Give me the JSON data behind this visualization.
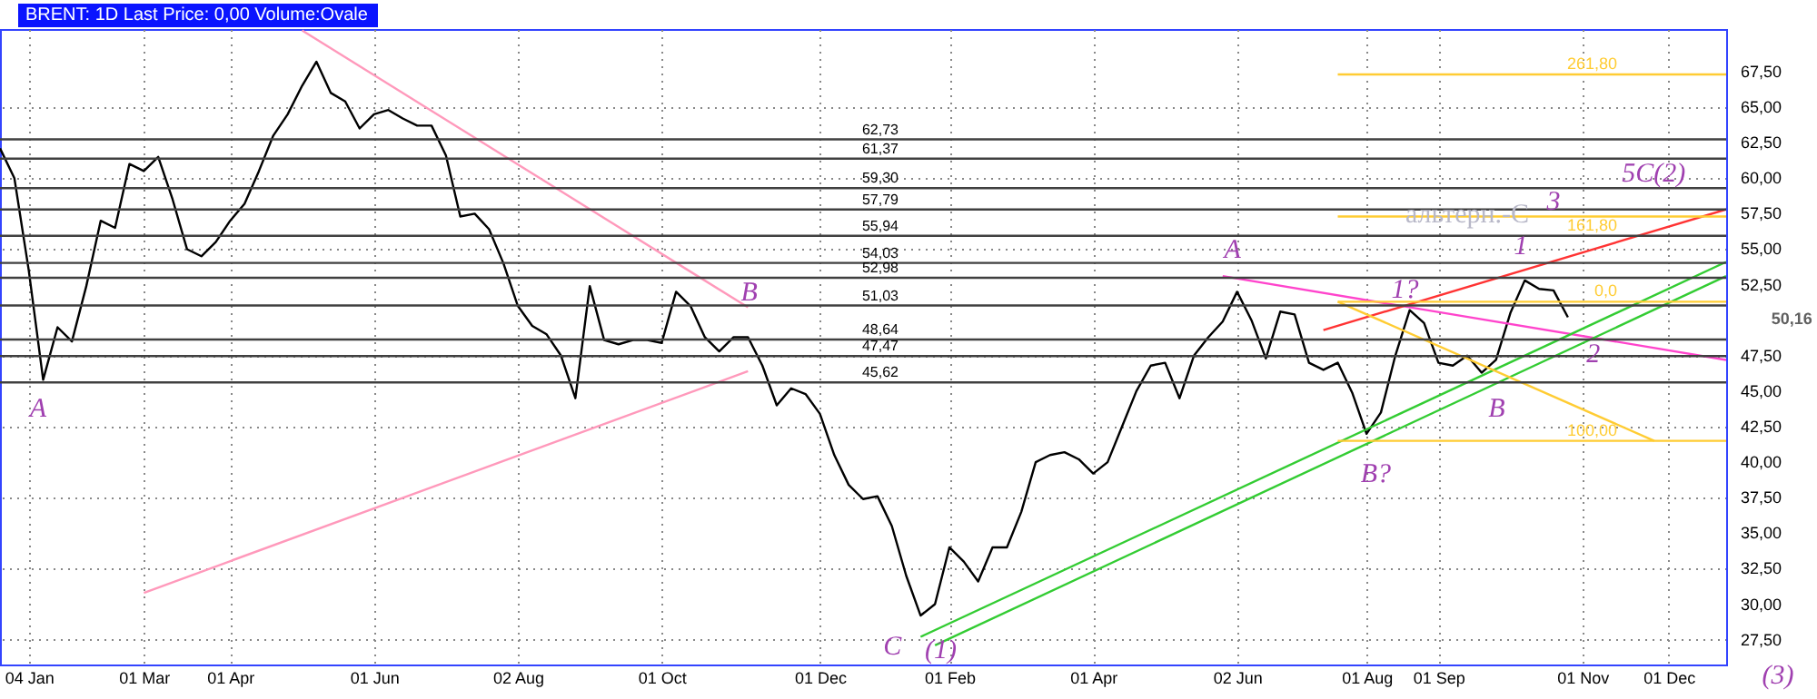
{
  "chart_data": {
    "type": "line",
    "title": "BRENT: 1D Last Price: 0,00 Volume:Ovale",
    "categories": [
      null,
      null,
      "04 Jan",
      null,
      null,
      null,
      null,
      null,
      null,
      null,
      "01 Mar",
      null,
      null,
      null,
      null,
      null,
      "01 Apr",
      null,
      null,
      null,
      null,
      null,
      null,
      null,
      null,
      null,
      "01 Jun",
      null,
      null,
      null,
      null,
      null,
      null,
      null,
      null,
      null,
      "02 Aug",
      null,
      null,
      null,
      null,
      null,
      null,
      null,
      null,
      null,
      "01 Oct",
      null,
      null,
      null,
      null,
      null,
      null,
      null,
      null,
      null,
      null,
      "01 Dec",
      null,
      null,
      null,
      null,
      null,
      null,
      null,
      null,
      "01 Feb",
      null,
      null,
      null,
      null,
      null,
      null,
      null,
      null,
      null,
      "01 Apr",
      null,
      null,
      null,
      null,
      null,
      null,
      null,
      null,
      null,
      "02 Jun",
      null,
      null,
      null,
      null,
      null,
      null,
      null,
      null,
      "01 Aug",
      null,
      null,
      null,
      null,
      "01 Sep",
      null,
      null,
      null,
      null,
      null,
      null,
      null,
      null,
      null,
      "01 Nov",
      null,
      null,
      null,
      null,
      null,
      "01 Dec",
      null,
      null,
      null,
      null
    ],
    "ylim": [
      25.75,
      70.5
    ],
    "yticks": [
      {
        "value": 27.5,
        "label": "27,50"
      },
      {
        "value": 30,
        "label": "30,00"
      },
      {
        "value": 32.5,
        "label": "32,50"
      },
      {
        "value": 35,
        "label": "35,00"
      },
      {
        "value": 37.5,
        "label": "37,50"
      },
      {
        "value": 40,
        "label": "40,00"
      },
      {
        "value": 42.5,
        "label": "42,50"
      },
      {
        "value": 45,
        "label": "45,00"
      },
      {
        "value": 47.5,
        "label": "47,50"
      },
      {
        "value": 52.5,
        "label": "52,50"
      },
      {
        "value": 55,
        "label": "55,00"
      },
      {
        "value": 57.5,
        "label": "57,50"
      },
      {
        "value": 60,
        "label": "60,00"
      },
      {
        "value": 62.5,
        "label": "62,50"
      },
      {
        "value": 65,
        "label": "65,00"
      },
      {
        "value": 67.5,
        "label": "67,50"
      }
    ],
    "grid": true,
    "series": [
      {
        "color": "#000000",
        "values": [
          62.1,
          60.0,
          53.5,
          45.8,
          49.5,
          48.5,
          52.4,
          57.0,
          56.5,
          61.0,
          60.5,
          61.5,
          58.5,
          55.0,
          54.5,
          55.5,
          57.0,
          58.2,
          60.5,
          63.0,
          64.5,
          66.5,
          68.2,
          66.0,
          65.4,
          63.5,
          64.5,
          64.8,
          64.2,
          63.7,
          63.7,
          61.6,
          57.3,
          57.5,
          56.4,
          54.0,
          51.0,
          49.6,
          49.0,
          47.5,
          44.5,
          52.4,
          48.6,
          48.3,
          48.6,
          48.6,
          48.4,
          52.0,
          51.0,
          48.8,
          47.8,
          48.8,
          48.8,
          46.8,
          44.0,
          45.2,
          44.8,
          43.4,
          40.5,
          38.4,
          37.4,
          37.6,
          35.5,
          32.0,
          29.2,
          30.0,
          34.0,
          33.0,
          31.6,
          34.0,
          34.0,
          36.5,
          40.0,
          40.5,
          40.7,
          40.2,
          39.2,
          40.0,
          42.5,
          45.0,
          46.8,
          47.0,
          44.5,
          47.5,
          48.8,
          49.9,
          52.0,
          50.0,
          47.3,
          50.6,
          50.4,
          47.0,
          46.5,
          47.0,
          44.9,
          42.0,
          43.5,
          47.5,
          50.7,
          49.8,
          47.0,
          46.8,
          47.5,
          46.3,
          47.2,
          50.5,
          52.8,
          52.2,
          52.1,
          50.2,
          null,
          null,
          null,
          null,
          null,
          null,
          null,
          null,
          null,
          null,
          null
        ]
      },
      {
        "color": "#ff99bb",
        "values": [
          null,
          null,
          null,
          null,
          null,
          null,
          null,
          null,
          null,
          null,
          null,
          null,
          null,
          null,
          null,
          null,
          null,
          null,
          null,
          null,
          null,
          70.4,
          null,
          null,
          null,
          null,
          null,
          null,
          null,
          null,
          null,
          null,
          null,
          null,
          null,
          null,
          null,
          null,
          null,
          null,
          null,
          null,
          null,
          null,
          null,
          null,
          null,
          null,
          null,
          null,
          null,
          null,
          50.9,
          null,
          null,
          null,
          null,
          null,
          null,
          null,
          null,
          null,
          null,
          null,
          null,
          null,
          null,
          null,
          null,
          null,
          null,
          null,
          null,
          null,
          null,
          null,
          null,
          null,
          null,
          null,
          null,
          null,
          null,
          null,
          null,
          null,
          null,
          null,
          null,
          null,
          null,
          null,
          null,
          null,
          null,
          null,
          null,
          null,
          null,
          null,
          null,
          null,
          null,
          null,
          null,
          null,
          null,
          null,
          null,
          null,
          null,
          null,
          null,
          null,
          null,
          null,
          null,
          null,
          null,
          null,
          null
        ]
      },
      {
        "color": "#ff99bb",
        "values": [
          null,
          null,
          null,
          null,
          null,
          null,
          null,
          null,
          null,
          null,
          30.8,
          null,
          null,
          null,
          null,
          null,
          null,
          null,
          null,
          null,
          null,
          null,
          null,
          null,
          null,
          null,
          null,
          null,
          null,
          null,
          null,
          null,
          null,
          null,
          null,
          null,
          null,
          null,
          null,
          null,
          null,
          null,
          null,
          null,
          null,
          null,
          null,
          null,
          null,
          null,
          null,
          null,
          46.4,
          null,
          null,
          null,
          null,
          null,
          null,
          null,
          null,
          null,
          null,
          null,
          null,
          null,
          null,
          null,
          null,
          null,
          null,
          null,
          null,
          null,
          null,
          null,
          null,
          null,
          null,
          null,
          null,
          null,
          null,
          null,
          null,
          null,
          null,
          null,
          null,
          null,
          null,
          null,
          null,
          null,
          null,
          null,
          null,
          null,
          null,
          null,
          null,
          null,
          null,
          null,
          null,
          null,
          null,
          null,
          null,
          null,
          null,
          null,
          null,
          null,
          null,
          null,
          null,
          null,
          null,
          null,
          null
        ]
      },
      {
        "color": "#ff44cc",
        "values": [
          null,
          null,
          null,
          null,
          null,
          null,
          null,
          null,
          null,
          null,
          null,
          null,
          null,
          null,
          null,
          null,
          null,
          null,
          null,
          null,
          null,
          null,
          null,
          null,
          null,
          null,
          null,
          null,
          null,
          null,
          null,
          null,
          null,
          null,
          null,
          null,
          null,
          null,
          null,
          null,
          null,
          null,
          null,
          null,
          null,
          null,
          null,
          null,
          null,
          null,
          null,
          null,
          null,
          null,
          null,
          null,
          null,
          null,
          null,
          null,
          null,
          null,
          null,
          null,
          null,
          null,
          null,
          null,
          null,
          null,
          null,
          null,
          null,
          null,
          null,
          null,
          null,
          null,
          null,
          null,
          null,
          null,
          null,
          null,
          null,
          53.1,
          null,
          null,
          null,
          null,
          null,
          null,
          null,
          null,
          null,
          null,
          null,
          null,
          null,
          null,
          null,
          null,
          null,
          null,
          null,
          null,
          null,
          null,
          null,
          null,
          null,
          null,
          null,
          null,
          null,
          null,
          null,
          null,
          null,
          null,
          47.2
        ]
      },
      {
        "color": "#ff3333",
        "values": [
          null,
          null,
          null,
          null,
          null,
          null,
          null,
          null,
          null,
          null,
          null,
          null,
          null,
          null,
          null,
          null,
          null,
          null,
          null,
          null,
          null,
          null,
          null,
          null,
          null,
          null,
          null,
          null,
          null,
          null,
          null,
          null,
          null,
          null,
          null,
          null,
          null,
          null,
          null,
          null,
          null,
          null,
          null,
          null,
          null,
          null,
          null,
          null,
          null,
          null,
          null,
          null,
          null,
          null,
          null,
          null,
          null,
          null,
          null,
          null,
          null,
          null,
          null,
          null,
          null,
          null,
          null,
          null,
          null,
          null,
          null,
          null,
          null,
          null,
          null,
          null,
          null,
          null,
          null,
          null,
          null,
          null,
          null,
          null,
          null,
          null,
          null,
          null,
          null,
          null,
          null,
          null,
          49.3,
          null,
          null,
          null,
          null,
          null,
          null,
          null,
          null,
          null,
          null,
          null,
          null,
          null,
          null,
          null,
          null,
          null,
          null,
          null,
          null,
          null,
          null,
          null,
          null,
          null,
          null,
          null,
          57.8
        ]
      },
      {
        "color": "#33cc33",
        "values": [
          null,
          null,
          null,
          null,
          null,
          null,
          null,
          null,
          null,
          null,
          null,
          null,
          null,
          null,
          null,
          null,
          null,
          null,
          null,
          null,
          null,
          null,
          null,
          null,
          null,
          null,
          null,
          null,
          null,
          null,
          null,
          null,
          null,
          null,
          null,
          null,
          null,
          null,
          null,
          null,
          null,
          null,
          null,
          null,
          null,
          null,
          null,
          null,
          null,
          null,
          null,
          null,
          null,
          null,
          null,
          null,
          null,
          null,
          null,
          null,
          null,
          null,
          null,
          null,
          27.7,
          null,
          null,
          null,
          null,
          null,
          null,
          null,
          null,
          null,
          null,
          null,
          null,
          null,
          null,
          null,
          null,
          null,
          null,
          null,
          null,
          null,
          null,
          null,
          null,
          null,
          null,
          null,
          null,
          null,
          null,
          null,
          null,
          null,
          null,
          null,
          null,
          null,
          null,
          null,
          null,
          null,
          null,
          null,
          null,
          null,
          null,
          null,
          null,
          null,
          null,
          null,
          null,
          null,
          null,
          null,
          54.1
        ]
      },
      {
        "color": "#33cc33",
        "values": [
          null,
          null,
          null,
          null,
          null,
          null,
          null,
          null,
          null,
          null,
          null,
          null,
          null,
          null,
          null,
          null,
          null,
          null,
          null,
          null,
          null,
          null,
          null,
          null,
          null,
          null,
          null,
          null,
          null,
          null,
          null,
          null,
          null,
          null,
          null,
          null,
          null,
          null,
          null,
          null,
          null,
          null,
          null,
          null,
          null,
          null,
          null,
          null,
          null,
          null,
          null,
          null,
          null,
          null,
          null,
          null,
          null,
          null,
          null,
          null,
          null,
          null,
          null,
          null,
          null,
          27.1,
          null,
          null,
          null,
          null,
          null,
          null,
          null,
          null,
          null,
          null,
          null,
          null,
          null,
          null,
          null,
          null,
          null,
          null,
          null,
          null,
          null,
          null,
          null,
          null,
          null,
          null,
          null,
          null,
          null,
          null,
          null,
          null,
          null,
          null,
          null,
          null,
          null,
          null,
          null,
          null,
          null,
          null,
          null,
          null,
          null,
          null,
          null,
          null,
          null,
          null,
          null,
          null,
          null,
          null,
          53.1
        ]
      },
      {
        "color": "#ffcc33",
        "values": [
          null,
          null,
          null,
          null,
          null,
          null,
          null,
          null,
          null,
          null,
          null,
          null,
          null,
          null,
          null,
          null,
          null,
          null,
          null,
          null,
          null,
          null,
          null,
          null,
          null,
          null,
          null,
          null,
          null,
          null,
          null,
          null,
          null,
          null,
          null,
          null,
          null,
          null,
          null,
          null,
          null,
          null,
          null,
          null,
          null,
          null,
          null,
          null,
          null,
          null,
          null,
          null,
          null,
          null,
          null,
          null,
          null,
          null,
          null,
          null,
          null,
          null,
          null,
          null,
          null,
          null,
          null,
          null,
          null,
          null,
          null,
          null,
          null,
          null,
          null,
          null,
          null,
          null,
          null,
          null,
          null,
          null,
          null,
          null,
          null,
          null,
          null,
          null,
          null,
          null,
          null,
          null,
          null,
          51.3,
          null,
          null,
          null,
          null,
          null,
          null,
          null,
          null,
          null,
          null,
          null,
          null,
          null,
          null,
          null,
          null,
          null,
          null,
          null,
          null,
          null,
          41.5,
          null,
          null,
          null,
          null,
          null
        ]
      },
      {
        "name": "261,80",
        "color": "#ffcc33",
        "values": [
          null,
          null,
          null,
          null,
          null,
          null,
          null,
          null,
          null,
          null,
          null,
          null,
          null,
          null,
          null,
          null,
          null,
          null,
          null,
          null,
          null,
          null,
          null,
          null,
          null,
          null,
          null,
          null,
          null,
          null,
          null,
          null,
          null,
          null,
          null,
          null,
          null,
          null,
          null,
          null,
          null,
          null,
          null,
          null,
          null,
          null,
          null,
          null,
          null,
          null,
          null,
          null,
          null,
          null,
          null,
          null,
          null,
          null,
          null,
          null,
          null,
          null,
          null,
          null,
          null,
          null,
          null,
          null,
          null,
          null,
          null,
          null,
          null,
          null,
          null,
          null,
          null,
          null,
          null,
          null,
          null,
          null,
          null,
          null,
          null,
          null,
          null,
          null,
          null,
          null,
          null,
          null,
          null,
          67.3,
          null,
          null,
          null,
          null,
          null,
          null,
          null,
          null,
          null,
          null,
          null,
          null,
          null,
          null,
          null,
          null,
          null,
          null,
          null,
          null,
          null,
          null,
          null,
          null,
          null,
          null,
          67.3
        ]
      },
      {
        "name": "161,80",
        "color": "#ffcc33",
        "values": [
          null,
          null,
          null,
          null,
          null,
          null,
          null,
          null,
          null,
          null,
          null,
          null,
          null,
          null,
          null,
          null,
          null,
          null,
          null,
          null,
          null,
          null,
          null,
          null,
          null,
          null,
          null,
          null,
          null,
          null,
          null,
          null,
          null,
          null,
          null,
          null,
          null,
          null,
          null,
          null,
          null,
          null,
          null,
          null,
          null,
          null,
          null,
          null,
          null,
          null,
          null,
          null,
          null,
          null,
          null,
          null,
          null,
          null,
          null,
          null,
          null,
          null,
          null,
          null,
          null,
          null,
          null,
          null,
          null,
          null,
          null,
          null,
          null,
          null,
          null,
          null,
          null,
          null,
          null,
          null,
          null,
          null,
          null,
          null,
          null,
          null,
          null,
          null,
          null,
          null,
          null,
          null,
          null,
          57.3,
          null,
          null,
          null,
          null,
          null,
          null,
          null,
          null,
          null,
          null,
          null,
          null,
          null,
          null,
          null,
          null,
          null,
          null,
          null,
          null,
          null,
          null,
          null,
          null,
          null,
          null,
          57.3
        ]
      },
      {
        "name": "0,0",
        "color": "#ffcc33",
        "values": [
          null,
          null,
          null,
          null,
          null,
          null,
          null,
          null,
          null,
          null,
          null,
          null,
          null,
          null,
          null,
          null,
          null,
          null,
          null,
          null,
          null,
          null,
          null,
          null,
          null,
          null,
          null,
          null,
          null,
          null,
          null,
          null,
          null,
          null,
          null,
          null,
          null,
          null,
          null,
          null,
          null,
          null,
          null,
          null,
          null,
          null,
          null,
          null,
          null,
          null,
          null,
          null,
          null,
          null,
          null,
          null,
          null,
          null,
          null,
          null,
          null,
          null,
          null,
          null,
          null,
          null,
          null,
          null,
          null,
          null,
          null,
          null,
          null,
          null,
          null,
          null,
          null,
          null,
          null,
          null,
          null,
          null,
          null,
          null,
          null,
          null,
          null,
          null,
          null,
          null,
          null,
          null,
          null,
          51.3,
          null,
          null,
          null,
          null,
          null,
          null,
          null,
          null,
          null,
          null,
          null,
          null,
          null,
          null,
          null,
          null,
          null,
          null,
          null,
          null,
          null,
          null,
          null,
          null,
          null,
          null,
          51.3
        ]
      },
      {
        "name": "100,00",
        "color": "#ffcc33",
        "values": [
          null,
          null,
          null,
          null,
          null,
          null,
          null,
          null,
          null,
          null,
          null,
          null,
          null,
          null,
          null,
          null,
          null,
          null,
          null,
          null,
          null,
          null,
          null,
          null,
          null,
          null,
          null,
          null,
          null,
          null,
          null,
          null,
          null,
          null,
          null,
          null,
          null,
          null,
          null,
          null,
          null,
          null,
          null,
          null,
          null,
          null,
          null,
          null,
          null,
          null,
          null,
          null,
          null,
          null,
          null,
          null,
          null,
          null,
          null,
          null,
          null,
          null,
          null,
          null,
          null,
          null,
          null,
          null,
          null,
          null,
          null,
          null,
          null,
          null,
          null,
          null,
          null,
          null,
          null,
          null,
          null,
          null,
          null,
          null,
          null,
          null,
          null,
          null,
          null,
          null,
          null,
          null,
          null,
          41.5,
          null,
          null,
          null,
          null,
          null,
          null,
          null,
          null,
          null,
          null,
          null,
          null,
          null,
          null,
          null,
          null,
          null,
          null,
          null,
          null,
          null,
          null,
          null,
          null,
          null,
          null,
          41.5
        ]
      }
    ],
    "ref_lines": [
      {
        "axis": "y",
        "value": 62.73,
        "label": "62,73",
        "color": "#404040"
      },
      {
        "axis": "y",
        "value": 61.37,
        "label": "61,37",
        "color": "#404040"
      },
      {
        "axis": "y",
        "value": 59.3,
        "label": "59,30",
        "color": "#404040"
      },
      {
        "axis": "y",
        "value": 57.79,
        "label": "57,79",
        "color": "#404040"
      },
      {
        "axis": "y",
        "value": 55.94,
        "label": "55,94",
        "color": "#404040"
      },
      {
        "axis": "y",
        "value": 54.03,
        "label": "54,03",
        "color": "#404040"
      },
      {
        "axis": "y",
        "value": 52.98,
        "label": "52,98",
        "color": "#404040"
      },
      {
        "axis": "y",
        "value": 51.03,
        "label": "51,03",
        "color": "#404040"
      },
      {
        "axis": "y",
        "value": 48.64,
        "label": "48,64",
        "color": "#404040"
      },
      {
        "axis": "y",
        "value": 47.47,
        "label": "47,47",
        "color": "#404040"
      },
      {
        "axis": "y",
        "value": 45.62,
        "label": "45,62",
        "color": "#404040"
      }
    ],
    "annotations": [
      "A",
      "B",
      "C",
      "(1)",
      "A",
      "1?",
      "B?",
      "B",
      "1",
      "2",
      "3",
      "5C(2)",
      "альтерн.-C",
      "50,16",
      "(3)"
    ]
  }
}
